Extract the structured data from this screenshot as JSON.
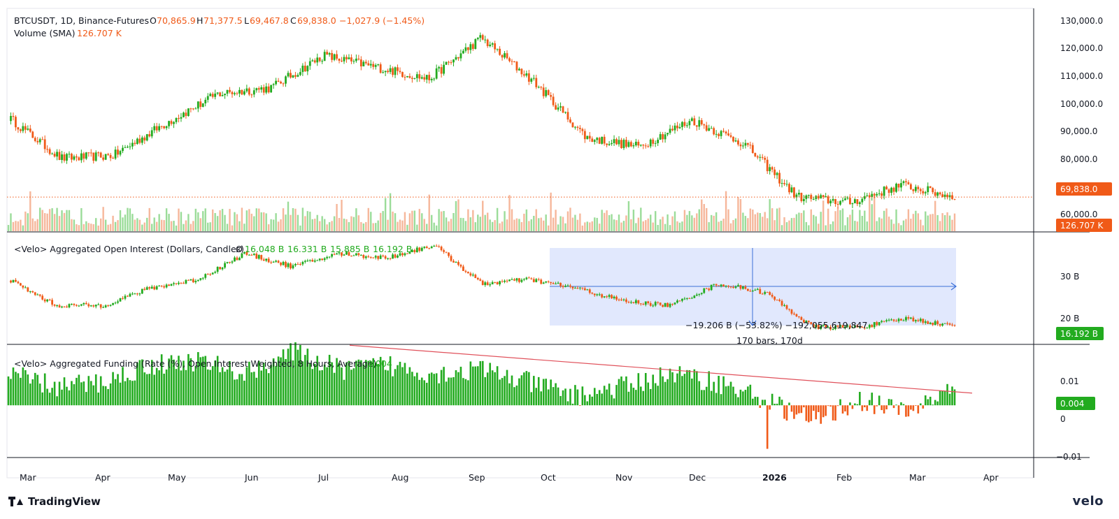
{
  "colors": {
    "up": "#22ab1f",
    "down": "#f05a18",
    "accent_orange": "#f05a18",
    "accent_green": "#2eb82e",
    "measure_fill": "#c9d6fb",
    "measure_line": "#3a6fd8",
    "trend_line": "#e0505a",
    "grid_border": "#131722"
  },
  "header": {
    "symbol_line": "BTCUSDT, 1D, Binance-Futures",
    "o_label": "O",
    "o_value": "70,865.9",
    "h_label": "H",
    "h_value": "71,377.5",
    "l_label": "L",
    "l_value": "69,467.8",
    "c_label": "C",
    "c_value": "69,838.0",
    "change": "−1,027.9 (−1.45%)",
    "volume_label": "Volume (SMA)",
    "volume_value": "126.707 K"
  },
  "oi_header": {
    "label": "<Velo> Aggregated Open Interest (Dollars, Candles)",
    "symbol": "Ø",
    "values": [
      "16.048 B",
      "16.331 B",
      "15.885 B",
      "16.192 B"
    ]
  },
  "funding_header": {
    "label": "<Velo> Aggregated Funding (Rate (%), Open Interest Weighted, 8 Hours, Average)",
    "value": "0.004"
  },
  "price_axis": {
    "ticks": [
      "130,000.0",
      "120,000.0",
      "110,000.0",
      "100,000.0",
      "90,000.0",
      "80,000.0",
      "60,000.0"
    ],
    "last_price_label": "69,838.0",
    "volume_label": "126.707 K"
  },
  "oi_axis": {
    "ticks": [
      "30 B",
      "20 B"
    ],
    "last_label": "16.192 B"
  },
  "funding_axis": {
    "ticks": [
      "0.01",
      "0",
      "−0.01"
    ],
    "last_label": "0.004"
  },
  "time_axis": [
    "Mar",
    "Apr",
    "May",
    "Jun",
    "Jul",
    "Aug",
    "Sep",
    "Oct",
    "Nov",
    "Dec",
    "2026",
    "Feb",
    "Mar",
    "Apr"
  ],
  "measure": {
    "line1": "−19.206 B (−53.82%) −192,055,619,847",
    "line2": "170 bars, 170d"
  },
  "footer": {
    "brand": "TradingView",
    "brand_right": "velo"
  },
  "chart_data": [
    {
      "type": "candlestick",
      "title": "BTCUSDT, 1D, Binance-Futures",
      "x": [
        "Mar",
        "Apr",
        "May",
        "Jun",
        "Jul",
        "Aug",
        "Sep",
        "Oct",
        "Nov",
        "Dec",
        "2026",
        "Feb",
        "Mar"
      ],
      "price_waypoints": [
        97000,
        83000,
        84000,
        95000,
        105000,
        107000,
        118000,
        114000,
        110000,
        124000,
        109000,
        90000,
        87000,
        96000,
        88000,
        70000,
        68000,
        74000,
        69838
      ],
      "ylim": [
        58000,
        134000
      ],
      "last_close": 69838.0
    },
    {
      "type": "bar",
      "title": "Volume (SMA)",
      "last_value": "126.707 K"
    },
    {
      "type": "candlestick",
      "title": "<Velo> Aggregated Open Interest (Dollars, Candles)",
      "oi_waypoints_B": [
        27,
        21,
        21,
        25,
        27,
        33,
        30,
        33,
        32,
        35,
        26,
        27,
        25,
        22,
        21,
        26,
        24,
        16,
        16,
        18,
        16.19
      ],
      "ylim_B": [
        12,
        38
      ],
      "last_value_B": 16.192
    },
    {
      "type": "bar",
      "title": "<Velo> Aggregated Funding (Rate (%), Open Interest Weighted, 8 Hours, Average)",
      "funding_waypoints": [
        0.007,
        0.004,
        0.005,
        0.009,
        0.01,
        0.007,
        0.012,
        0.008,
        0.009,
        0.007,
        0.008,
        0.005,
        0.002,
        0.004,
        0.007,
        0.005,
        0.001,
        -0.004,
        0.001,
        -0.002,
        0.004
      ],
      "min_value": -0.01,
      "ylim": [
        -0.012,
        0.014
      ],
      "last_value": 0.004
    }
  ]
}
